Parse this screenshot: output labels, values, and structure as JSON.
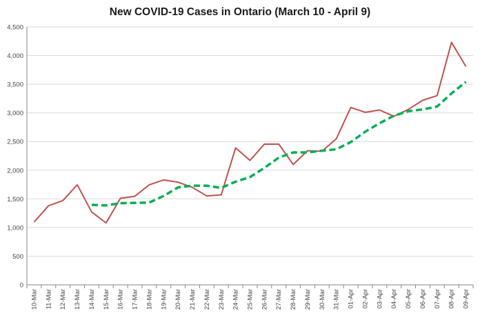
{
  "chart_data": {
    "type": "line",
    "title": "New COVID-19 Cases in Ontario (March 10 - April 9)",
    "xlabel": "",
    "ylabel": "",
    "ylim": [
      0,
      4500
    ],
    "ytick_step": 500,
    "grid": "horizontal",
    "legend": "none",
    "categories": [
      "10-Mar",
      "11-Mar",
      "12-Mar",
      "13-Mar",
      "14-Mar",
      "15-Mar",
      "16-Mar",
      "17-Mar",
      "18-Mar",
      "19-Mar",
      "20-Mar",
      "21-Mar",
      "22-Mar",
      "23-Mar",
      "24-Mar",
      "25-Mar",
      "26-Mar",
      "27-Mar",
      "28-Mar",
      "29-Mar",
      "30-Mar",
      "31-Mar",
      "01-Apr",
      "02-Apr",
      "03-Apr",
      "04-Apr",
      "05-Apr",
      "06-Apr",
      "07-Apr",
      "08-Apr",
      "09-Apr"
    ],
    "series": [
      {
        "style": "solid",
        "color": "#c0504d",
        "values": [
          1095,
          1380,
          1470,
          1745,
          1270,
          1080,
          1510,
          1545,
          1745,
          1830,
          1790,
          1700,
          1550,
          1570,
          2390,
          2170,
          2455,
          2455,
          2100,
          2340,
          2330,
          2550,
          3095,
          3010,
          3050,
          2940,
          3060,
          3220,
          3300,
          4230,
          3810
        ]
      },
      {
        "style": "dashed",
        "color": "#00b050",
        "values": [
          null,
          null,
          null,
          null,
          1395,
          1385,
          1425,
          1430,
          1435,
          1550,
          1700,
          1730,
          1730,
          1690,
          1800,
          1880,
          2040,
          2220,
          2310,
          2310,
          2340,
          2365,
          2490,
          2670,
          2820,
          2950,
          3030,
          3060,
          3110,
          3340,
          3540
        ]
      }
    ]
  }
}
